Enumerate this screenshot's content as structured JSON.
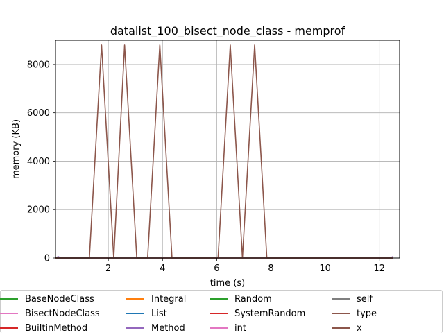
{
  "chart_data": {
    "type": "line",
    "title": "datalist_100_bisect_node_class - memprof",
    "xlabel": "time (s)",
    "ylabel": "memory (KB)",
    "xlim": [
      0.05,
      12.75
    ],
    "ylim": [
      0,
      9000
    ],
    "xticks": [
      2,
      4,
      6,
      8,
      10,
      12
    ],
    "yticks": [
      0,
      2000,
      4000,
      6000,
      8000
    ],
    "grid": true,
    "legend_placement": "below plot, 5 columns",
    "series": [
      {
        "name": "BaseNodeClass",
        "color": "#2ca02c",
        "x": [
          0.05,
          12.5
        ],
        "y": [
          0,
          0
        ]
      },
      {
        "name": "BisectNodeClass",
        "color": "#e377c2",
        "x": [
          0.05,
          12.5
        ],
        "y": [
          0,
          0
        ]
      },
      {
        "name": "BuiltinMethod",
        "color": "#d62728",
        "x": [
          0.05,
          12.5
        ],
        "y": [
          0,
          0
        ]
      },
      {
        "name": "Integral",
        "color": "#ff7f0e",
        "x": [
          0.05,
          12.5
        ],
        "y": [
          0,
          0
        ]
      },
      {
        "name": "List",
        "color": "#1f77b4",
        "x": [
          0.05,
          12.5
        ],
        "y": [
          0,
          0
        ]
      },
      {
        "name": "Method",
        "color": "#9467bd",
        "x": [
          0.05,
          0.15,
          0.25,
          12.4,
          12.5
        ],
        "y": [
          0,
          60,
          0,
          0,
          60
        ]
      },
      {
        "name": "Random",
        "color": "#2ca02c",
        "x": [
          0.05,
          12.5
        ],
        "y": [
          0,
          0
        ]
      },
      {
        "name": "SystemRandom",
        "color": "#d62728",
        "x": [
          0.05,
          12.5
        ],
        "y": [
          0,
          0
        ]
      },
      {
        "name": "int",
        "color": "#e377c2",
        "x": [
          0.05,
          12.5
        ],
        "y": [
          0,
          0
        ]
      },
      {
        "name": "self",
        "color": "#7f7f7f",
        "x": [
          0.05,
          12.5
        ],
        "y": [
          0,
          0
        ]
      },
      {
        "name": "type",
        "color": "#8c564b",
        "x": [
          0.05,
          12.5
        ],
        "y": [
          0,
          0
        ]
      },
      {
        "name": "x",
        "color": "#8c564b",
        "x": [
          0.05,
          1.3,
          1.75,
          2.2,
          2.6,
          3.05,
          3.45,
          3.9,
          4.35,
          6.05,
          6.5,
          6.95,
          7.4,
          7.85,
          12.5
        ],
        "y": [
          0,
          0,
          8800,
          0,
          8800,
          0,
          0,
          8800,
          0,
          0,
          8800,
          0,
          8800,
          0,
          0
        ]
      }
    ]
  },
  "legend": {
    "items": [
      {
        "label": "BaseNodeClass",
        "color": "#2ca02c"
      },
      {
        "label": "BisectNodeClass",
        "color": "#e377c2"
      },
      {
        "label": "BuiltinMethod",
        "color": "#d62728"
      },
      {
        "label": "Integral",
        "color": "#ff7f0e"
      },
      {
        "label": "List",
        "color": "#1f77b4"
      },
      {
        "label": "Method",
        "color": "#9467bd"
      },
      {
        "label": "Random",
        "color": "#2ca02c"
      },
      {
        "label": "SystemRandom",
        "color": "#d62728"
      },
      {
        "label": "int",
        "color": "#e377c2"
      },
      {
        "label": "self",
        "color": "#7f7f7f"
      },
      {
        "label": "type",
        "color": "#8c564b"
      },
      {
        "label": "x",
        "color": "#8c564b"
      }
    ]
  }
}
